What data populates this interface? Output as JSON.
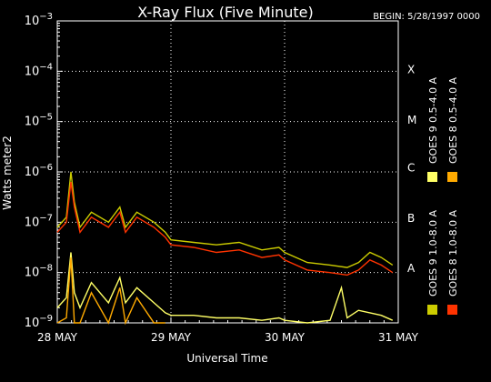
{
  "chart_data": {
    "type": "line",
    "title": "X-Ray Flux (Five Minute)",
    "begin_label": "BEGIN: 5/28/1997 0000",
    "xlabel": "Universal Time",
    "ylabel": "Watts meter2",
    "x_tick_labels": [
      "28 MAY",
      "29 MAY",
      "30 MAY",
      "31 MAY"
    ],
    "x_range_days": [
      0,
      3
    ],
    "ylim_log10": [
      -9,
      -3
    ],
    "y_tick_exponents": [
      -9,
      -8,
      -7,
      -6,
      -5,
      -4,
      -3
    ],
    "flare_classes": [
      {
        "label": "A",
        "log10": -7.9
      },
      {
        "label": "B",
        "log10": -6.9
      },
      {
        "label": "C",
        "log10": -5.9
      },
      {
        "label": "M",
        "log10": -4.95
      },
      {
        "label": "X",
        "log10": -3.95
      }
    ],
    "grid": "dotted",
    "legend_placement": "right",
    "series": [
      {
        "name": "GOES 9 1.0-8.0 A",
        "color": "#cccc00",
        "x": [
          0,
          0.08,
          0.12,
          0.15,
          0.2,
          0.3,
          0.45,
          0.55,
          0.6,
          0.7,
          0.85,
          0.95,
          1.0,
          1.2,
          1.4,
          1.6,
          1.8,
          1.95,
          2.0,
          2.2,
          2.4,
          2.55,
          2.65,
          2.75,
          2.85,
          2.95
        ],
        "y_log10": [
          -7.1,
          -6.9,
          -6.0,
          -6.6,
          -7.1,
          -6.8,
          -7.0,
          -6.7,
          -7.1,
          -6.8,
          -7.0,
          -7.2,
          -7.35,
          -7.4,
          -7.45,
          -7.4,
          -7.55,
          -7.5,
          -7.6,
          -7.8,
          -7.85,
          -7.9,
          -7.8,
          -7.6,
          -7.7,
          -7.85
        ]
      },
      {
        "name": "GOES 8 1.0-8.0 A",
        "color": "#ff3300",
        "x": [
          0,
          0.08,
          0.12,
          0.15,
          0.2,
          0.3,
          0.45,
          0.55,
          0.6,
          0.7,
          0.85,
          0.95,
          1.0,
          1.2,
          1.4,
          1.6,
          1.8,
          1.95,
          2.0,
          2.2,
          2.4,
          2.55,
          2.65,
          2.75,
          2.85,
          2.95
        ],
        "y_log10": [
          -7.2,
          -7.0,
          -6.2,
          -6.7,
          -7.2,
          -6.9,
          -7.1,
          -6.8,
          -7.2,
          -6.9,
          -7.1,
          -7.3,
          -7.45,
          -7.5,
          -7.6,
          -7.55,
          -7.7,
          -7.65,
          -7.75,
          -7.95,
          -8.0,
          -8.05,
          -7.95,
          -7.75,
          -7.85,
          -8.0
        ]
      },
      {
        "name": "GOES 9 0.5-4.0 A",
        "color": "#ffff66",
        "x": [
          0,
          0.08,
          0.12,
          0.15,
          0.2,
          0.3,
          0.45,
          0.55,
          0.6,
          0.7,
          0.85,
          0.95,
          1.0,
          1.2,
          1.4,
          1.6,
          1.8,
          1.95,
          2.0,
          2.2,
          2.4,
          2.5,
          2.55,
          2.65,
          2.75,
          2.85,
          2.95
        ],
        "y_log10": [
          -8.7,
          -8.5,
          -7.6,
          -8.4,
          -8.7,
          -8.2,
          -8.6,
          -8.1,
          -8.6,
          -8.3,
          -8.6,
          -8.8,
          -8.85,
          -8.85,
          -8.9,
          -8.9,
          -8.95,
          -8.9,
          -8.95,
          -9.0,
          -8.95,
          -8.3,
          -8.9,
          -8.75,
          -8.8,
          -8.85,
          -8.95
        ]
      },
      {
        "name": "GOES 8 0.5-4.0 A",
        "color": "#ffaa00",
        "x": [
          0,
          0.08,
          0.12,
          0.15,
          0.2,
          0.3,
          0.45,
          0.55,
          0.6,
          0.7,
          0.85,
          0.95
        ],
        "y_log10": [
          -9.0,
          -8.9,
          -7.7,
          -9.0,
          -9.0,
          -8.4,
          -9.0,
          -8.3,
          -9.0,
          -8.5,
          -9.0,
          -9.0
        ]
      }
    ]
  }
}
